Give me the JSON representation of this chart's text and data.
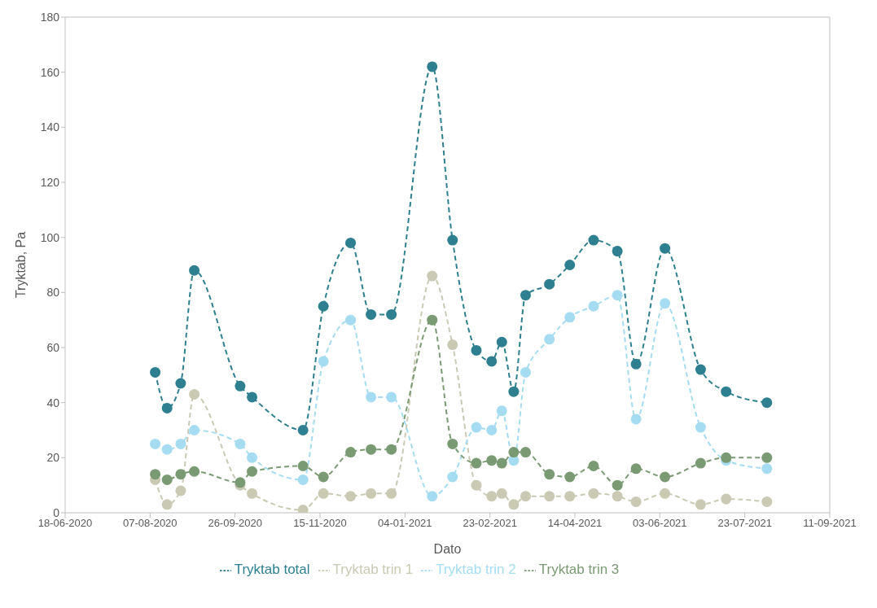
{
  "chart_data": {
    "type": "line",
    "xlabel": "Dato",
    "ylabel": "Tryktab, Pa",
    "x": [
      "2020-08-10",
      "2020-08-17",
      "2020-08-25",
      "2020-09-02",
      "2020-09-29",
      "2020-10-06",
      "2020-11-05",
      "2020-11-17",
      "2020-12-03",
      "2020-12-15",
      "2020-12-27",
      "2021-01-20",
      "2021-02-01",
      "2021-02-15",
      "2021-02-24",
      "2021-03-02",
      "2021-03-09",
      "2021-03-16",
      "2021-03-30",
      "2021-04-11",
      "2021-04-25",
      "2021-05-09",
      "2021-05-20",
      "2021-06-06",
      "2021-06-27",
      "2021-07-12",
      "2021-08-05"
    ],
    "series": [
      {
        "name": "Tryktab trin 1",
        "color": "#c9c9b4",
        "values": [
          12,
          3,
          8,
          43,
          10,
          7,
          1,
          7,
          6,
          7,
          7,
          86,
          61,
          10,
          6,
          7,
          3,
          6,
          6,
          6,
          7,
          6,
          4,
          7,
          3,
          5,
          4
        ]
      },
      {
        "name": "Tryktab trin 2",
        "color": "#a6dcf2",
        "values": [
          25,
          23,
          25,
          30,
          25,
          20,
          12,
          55,
          70,
          42,
          42,
          6,
          13,
          31,
          30,
          37,
          19,
          51,
          63,
          71,
          75,
          79,
          34,
          76,
          31,
          19,
          16
        ]
      },
      {
        "name": "Tryktab trin 3",
        "color": "#7a9a73",
        "values": [
          14,
          12,
          14,
          15,
          11,
          15,
          17,
          13,
          22,
          23,
          23,
          70,
          25,
          18,
          19,
          18,
          22,
          22,
          14,
          13,
          17,
          10,
          16,
          13,
          18,
          20,
          20
        ]
      },
      {
        "name": "Tryktab total",
        "color": "#2e7f8f",
        "values": [
          51,
          38,
          47,
          88,
          46,
          42,
          30,
          75,
          98,
          72,
          72,
          162,
          99,
          59,
          55,
          62,
          44,
          79,
          83,
          90,
          99,
          95,
          54,
          96,
          52,
          44,
          40
        ]
      }
    ],
    "xlim": [
      "2020-06-18",
      "2021-09-11"
    ],
    "xticks": [
      {
        "value": "2020-06-18",
        "label": "18-06-2020"
      },
      {
        "value": "2020-08-07",
        "label": "07-08-2020"
      },
      {
        "value": "2020-09-26",
        "label": "26-09-2020"
      },
      {
        "value": "2020-11-15",
        "label": "15-11-2020"
      },
      {
        "value": "2021-01-04",
        "label": "04-01-2021"
      },
      {
        "value": "2021-02-23",
        "label": "23-02-2021"
      },
      {
        "value": "2021-04-14",
        "label": "14-04-2021"
      },
      {
        "value": "2021-06-03",
        "label": "03-06-2021"
      },
      {
        "value": "2021-07-23",
        "label": "23-07-2021"
      },
      {
        "value": "2021-09-11",
        "label": "11-09-2021"
      }
    ],
    "ylim": [
      0,
      180
    ],
    "yticks": [
      0,
      20,
      40,
      60,
      80,
      100,
      120,
      140,
      160,
      180
    ],
    "grid": false,
    "legend": "bottom",
    "marker": "circle",
    "line_style": "dashed"
  }
}
